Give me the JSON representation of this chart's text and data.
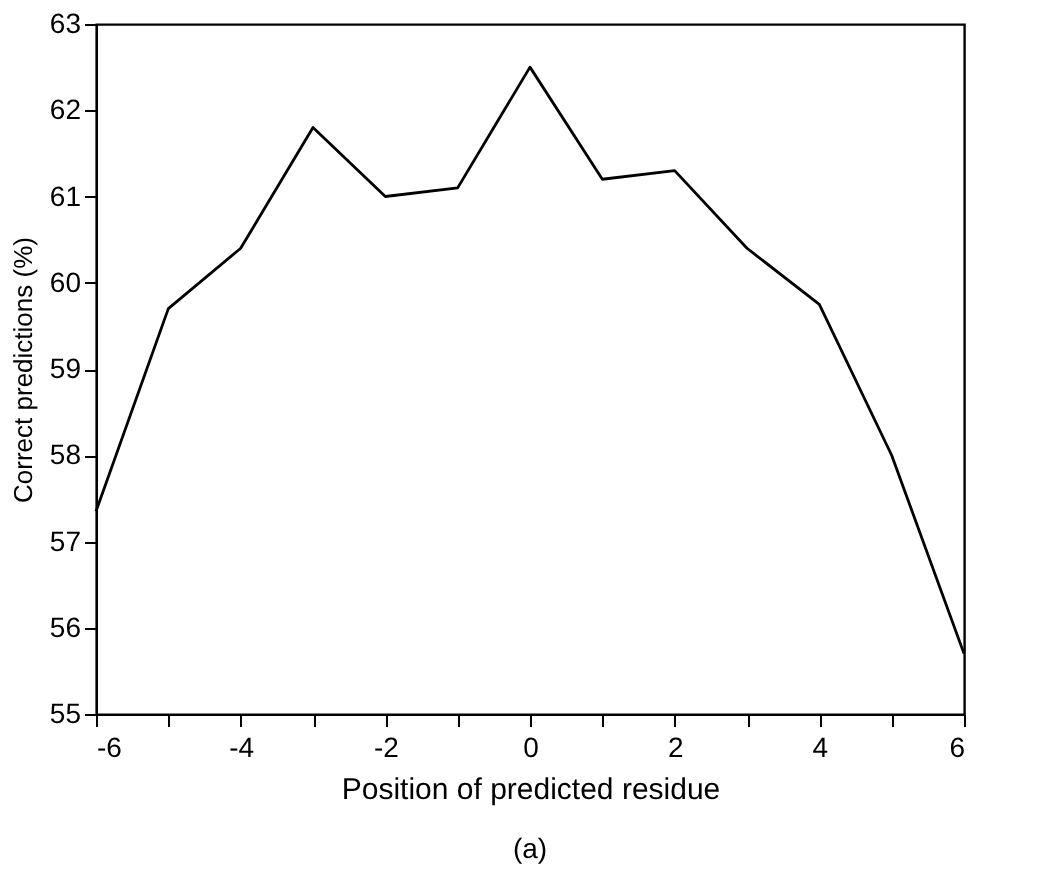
{
  "chart_data": {
    "type": "line",
    "xlabel": "Position of predicted residue",
    "ylabel": "Correct predictions (%)",
    "annotations": [
      "(a)"
    ],
    "x": [
      -6,
      -5,
      -4,
      -3,
      -2,
      -1,
      0,
      1,
      2,
      3,
      4,
      5,
      6
    ],
    "series": [
      {
        "color": "#000000",
        "values": [
          57.35,
          59.7,
          60.4,
          61.8,
          61.0,
          61.1,
          62.5,
          61.2,
          61.3,
          60.4,
          59.75,
          58.0,
          55.7
        ]
      }
    ],
    "xlim": [
      -6,
      6
    ],
    "ylim": [
      55,
      63
    ],
    "xticks": [
      -6,
      {
        "value": -5,
        "label": null
      },
      -4,
      {
        "value": -3,
        "label": null
      },
      -2,
      {
        "value": -1,
        "label": null
      },
      0,
      {
        "value": 1,
        "label": null
      },
      2,
      {
        "value": 3,
        "label": null
      },
      4,
      {
        "value": 5,
        "label": null
      },
      6
    ],
    "yticks": [
      55,
      56,
      57,
      58,
      59,
      60,
      61,
      62,
      63
    ],
    "grid": false,
    "marker": "none",
    "line_style": "solid"
  }
}
